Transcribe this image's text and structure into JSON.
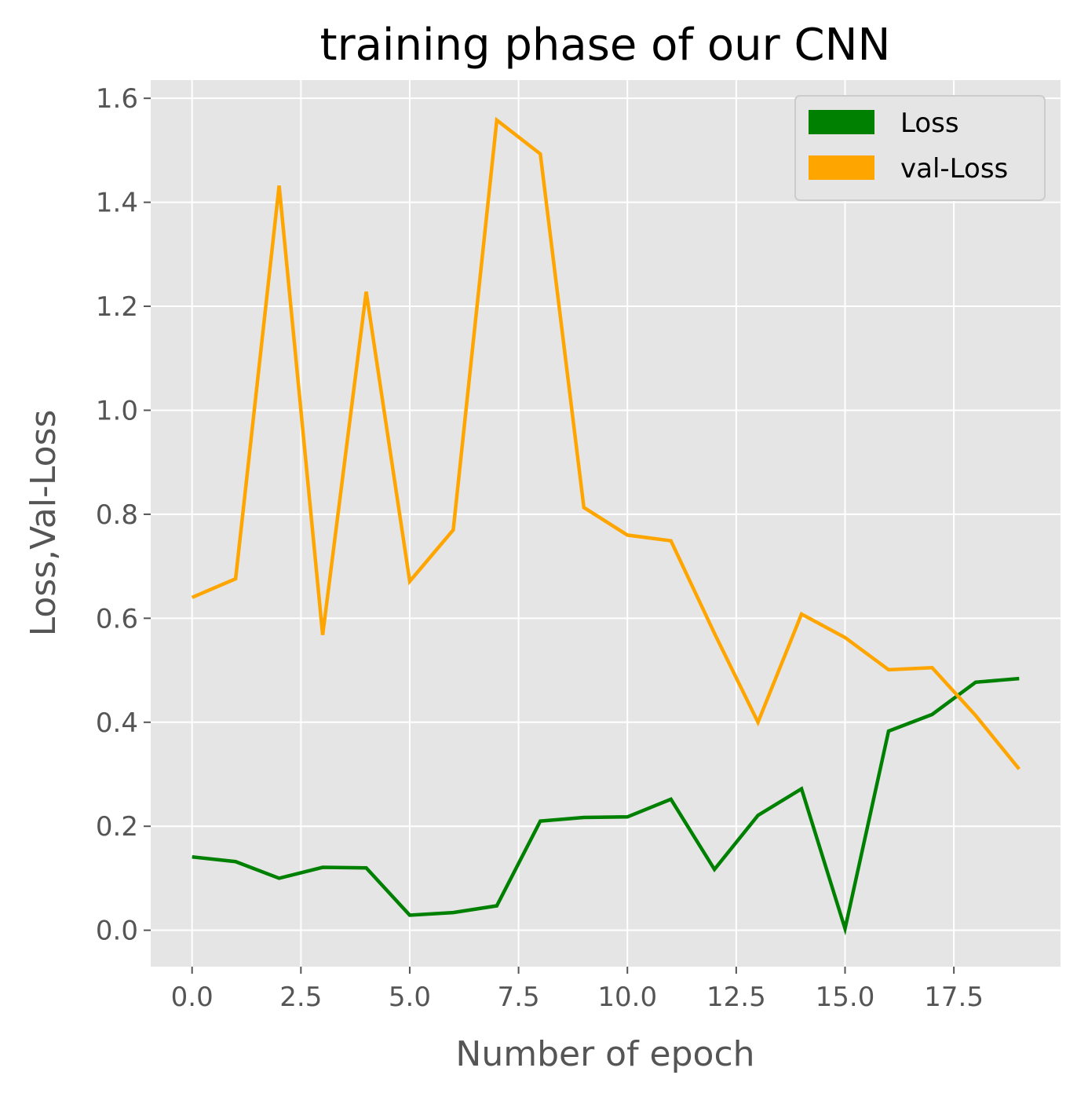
{
  "chart_data": {
    "type": "line",
    "title": "training phase of our CNN",
    "xlabel": "Number of epoch",
    "ylabel": "Loss,Val-Loss",
    "xlim": [
      -0.95,
      19.95
    ],
    "ylim": [
      -0.07,
      1.635
    ],
    "xticks": [
      0.0,
      2.5,
      5.0,
      7.5,
      10.0,
      12.5,
      15.0,
      17.5
    ],
    "xtick_labels": [
      "0.0",
      "2.5",
      "5.0",
      "7.5",
      "10.0",
      "12.5",
      "15.0",
      "17.5"
    ],
    "yticks": [
      0.0,
      0.2,
      0.4,
      0.6,
      0.8,
      1.0,
      1.2,
      1.4,
      1.6
    ],
    "ytick_labels": [
      "0.0",
      "0.2",
      "0.4",
      "0.6",
      "0.8",
      "1.0",
      "1.2",
      "1.4",
      "1.6"
    ],
    "grid": true,
    "legend_position": "top-right",
    "x": [
      0,
      1,
      2,
      3,
      4,
      5,
      6,
      7,
      8,
      9,
      10,
      11,
      12,
      13,
      14,
      15,
      16,
      17,
      18,
      19
    ],
    "series": [
      {
        "name": "Loss",
        "color": "#008000",
        "values": [
          0.141,
          0.132,
          0.1,
          0.121,
          0.12,
          0.029,
          0.034,
          0.047,
          0.21,
          0.217,
          0.218,
          0.252,
          0.117,
          0.221,
          0.272,
          0.003,
          0.383,
          0.415,
          0.477,
          0.484
        ]
      },
      {
        "name": "val-Loss",
        "color": "#FFA500",
        "values": [
          0.64,
          0.676,
          1.432,
          0.568,
          1.228,
          0.671,
          0.77,
          1.558,
          1.493,
          0.813,
          0.76,
          0.749,
          0.571,
          0.4,
          0.608,
          0.563,
          0.501,
          0.505,
          0.413,
          0.31
        ]
      }
    ]
  }
}
